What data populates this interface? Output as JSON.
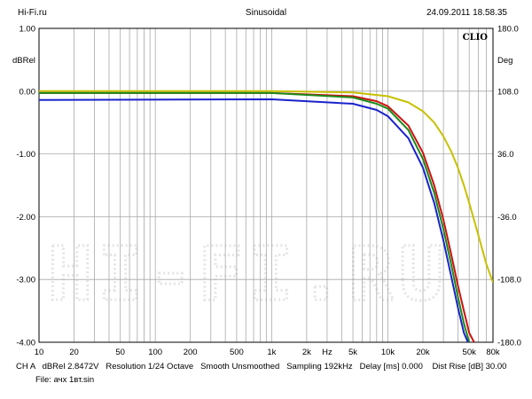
{
  "header": {
    "left": "Hi-Fi.ru",
    "center": "Sinusoidal",
    "right": "24.09.2011 18.58.35"
  },
  "chart_data": {
    "type": "line",
    "brand_label": "CLIO",
    "watermark": "HI-FI.RU",
    "xscale": "log",
    "xlim": [
      10,
      80000
    ],
    "ylim": [
      -4.0,
      1.0
    ],
    "y2lim": [
      -180,
      180
    ],
    "ylabel": "dBRel",
    "y2label": "Deg",
    "xlabel_unit": "Hz",
    "grid": true,
    "y_ticks": [
      "1.00",
      "0.00",
      "-1.00",
      "-2.00",
      "-3.00",
      "-4.00"
    ],
    "y2_ticks": [
      "180.0",
      "108.0",
      "36.0",
      "-36.0",
      "-108.0",
      "-180.0"
    ],
    "x_ticks": [
      {
        "value": 10,
        "label": "10"
      },
      {
        "value": 20,
        "label": "20"
      },
      {
        "value": 50,
        "label": "50"
      },
      {
        "value": 100,
        "label": "100"
      },
      {
        "value": 200,
        "label": "200"
      },
      {
        "value": 500,
        "label": "500"
      },
      {
        "value": 1000,
        "label": "1k"
      },
      {
        "value": 2000,
        "label": "2k"
      },
      {
        "value": 5000,
        "label": "5k"
      },
      {
        "value": 10000,
        "label": "10k"
      },
      {
        "value": 20000,
        "label": "20k"
      },
      {
        "value": 50000,
        "label": "50k"
      },
      {
        "value": 80000,
        "label": "80k"
      }
    ],
    "series": [
      {
        "color": "#c8c000",
        "x": [
          10,
          1000,
          5000,
          10000,
          15000,
          20000,
          25000,
          30000,
          35000,
          40000,
          45000,
          50000,
          60000,
          70000,
          80000
        ],
        "y": [
          0.0,
          0.0,
          -0.02,
          -0.08,
          -0.18,
          -0.32,
          -0.5,
          -0.72,
          -0.96,
          -1.22,
          -1.5,
          -1.78,
          -2.3,
          -2.75,
          -3.05
        ]
      },
      {
        "color": "#d01010",
        "x": [
          10,
          1000,
          5000,
          8000,
          10000,
          15000,
          20000,
          25000,
          30000,
          35000,
          40000,
          45000,
          50000,
          55000,
          60000,
          65000
        ],
        "y": [
          -0.03,
          -0.03,
          -0.08,
          -0.16,
          -0.24,
          -0.55,
          -0.98,
          -1.5,
          -2.05,
          -2.6,
          -3.1,
          -3.5,
          -3.85,
          -4.0,
          -4.1,
          -4.2
        ]
      },
      {
        "color": "#1a8a1a",
        "x": [
          10,
          1000,
          5000,
          8000,
          10000,
          15000,
          20000,
          25000,
          30000,
          35000,
          40000,
          45000,
          50000,
          55000,
          60000
        ],
        "y": [
          -0.03,
          -0.03,
          -0.1,
          -0.2,
          -0.28,
          -0.62,
          -1.08,
          -1.62,
          -2.2,
          -2.76,
          -3.28,
          -3.7,
          -4.0,
          -4.15,
          -4.25
        ]
      },
      {
        "color": "#1a22cc",
        "x": [
          10,
          1000,
          5000,
          8000,
          10000,
          15000,
          20000,
          25000,
          30000,
          35000,
          40000,
          45000,
          50000,
          55000,
          60000
        ],
        "y": [
          -0.14,
          -0.13,
          -0.2,
          -0.3,
          -0.4,
          -0.75,
          -1.22,
          -1.78,
          -2.38,
          -2.95,
          -3.45,
          -3.85,
          -4.05,
          -4.2,
          -4.3
        ]
      }
    ]
  },
  "footer": {
    "line1": "CH A   dBRel 2.8472V   Resolution 1/24 Octave   Smooth Unsmoothed   Sampling 192kHz   Delay [ms] 0.000    Dist Rise [dB] 30.00",
    "line2": "File: ачх 1вт.sin"
  }
}
